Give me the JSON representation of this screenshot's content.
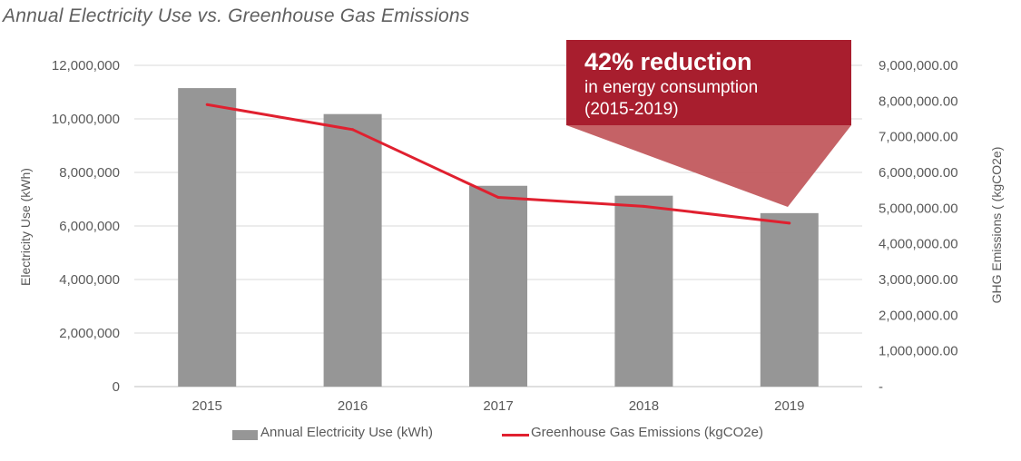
{
  "title": "Annual Electricity Use vs. Greenhouse Gas Emissions",
  "colors": {
    "bar": "#969696",
    "line": "#e0202f",
    "callout_box": "#a81e2e",
    "callout_pointer": "#c25a5e",
    "grid": "#d9d9d9"
  },
  "callout": {
    "headline": "42% reduction",
    "line1": "in energy consumption",
    "line2": "(2015-2019)"
  },
  "legend": {
    "bar_label": "Annual Electricity Use (kWh)",
    "line_label": "Greenhouse Gas Emissions (kgCO2e)"
  },
  "chart_data": {
    "type": "bar",
    "title": "Annual Electricity Use vs. Greenhouse Gas Emissions",
    "categories": [
      "2015",
      "2016",
      "2017",
      "2018",
      "2019"
    ],
    "series": [
      {
        "name": "Annual Electricity Use (kWh)",
        "type": "bar",
        "axis": "left",
        "values": [
          11150000,
          10180000,
          7500000,
          7130000,
          6480000
        ]
      },
      {
        "name": "Greenhouse Gas Emissions (kgCO2e)",
        "type": "line",
        "axis": "right",
        "values": [
          7900000,
          7200000,
          5300000,
          5050000,
          4580000
        ]
      }
    ],
    "ylabel": "Electricity Use (kWh)",
    "y2label": "GHG Emissions ( (kgCO2e)",
    "ylim": [
      0,
      12000000
    ],
    "y2lim": [
      0,
      9000000
    ],
    "yticks": [
      "0",
      "2,000,000",
      "4,000,000",
      "6,000,000",
      "8,000,000",
      "10,000,000",
      "12,000,000"
    ],
    "y2ticks": [
      "-",
      "1,000,000.00",
      "2,000,000.00",
      "3,000,000.00",
      "4,000,000.00",
      "5,000,000.00",
      "6,000,000.00",
      "7,000,000.00",
      "8,000,000.00",
      "9,000,000.00"
    ],
    "grid": true,
    "legend_position": "bottom"
  }
}
